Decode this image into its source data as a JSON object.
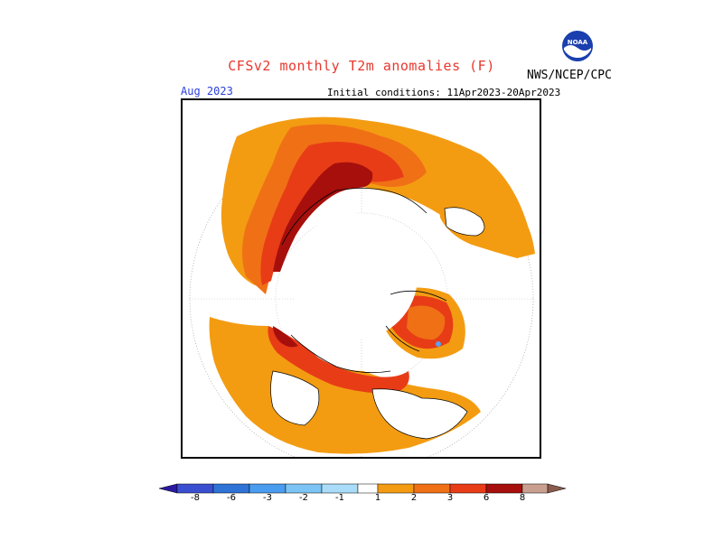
{
  "title": "CFSv2 monthly T2m anomalies (F)",
  "agency": "NWS/NCEP/CPC",
  "logo": {
    "text": "NOAA",
    "icon": "noaa-logo-icon"
  },
  "map": {
    "month": "Aug 2023",
    "initial_conditions": "Initial conditions: 11Apr2023-20Apr2023",
    "projection": "north polar stereographic"
  },
  "colorbar": {
    "ticks": [
      "-8",
      "-6",
      "-3",
      "-2",
      "-1",
      "1",
      "2",
      "3",
      "6",
      "8"
    ],
    "colors": [
      "#2b1aa0",
      "#3a4fd0",
      "#2f73d6",
      "#4a9cef",
      "#7cc4f5",
      "#ffffff",
      "#f39c12",
      "#f07016",
      "#e83c17",
      "#a60f0c",
      "#c9a08f",
      "#8a5b4d"
    ]
  },
  "legend_colors": {
    "anom_1_2": "#f39c12",
    "anom_2_3": "#f07016",
    "anom_3_6": "#e83c17",
    "anom_6_8": "#a60f0c",
    "land_neutral": "#ffffff",
    "coast": "#000000",
    "cold_spot": "#5aa0ef"
  }
}
